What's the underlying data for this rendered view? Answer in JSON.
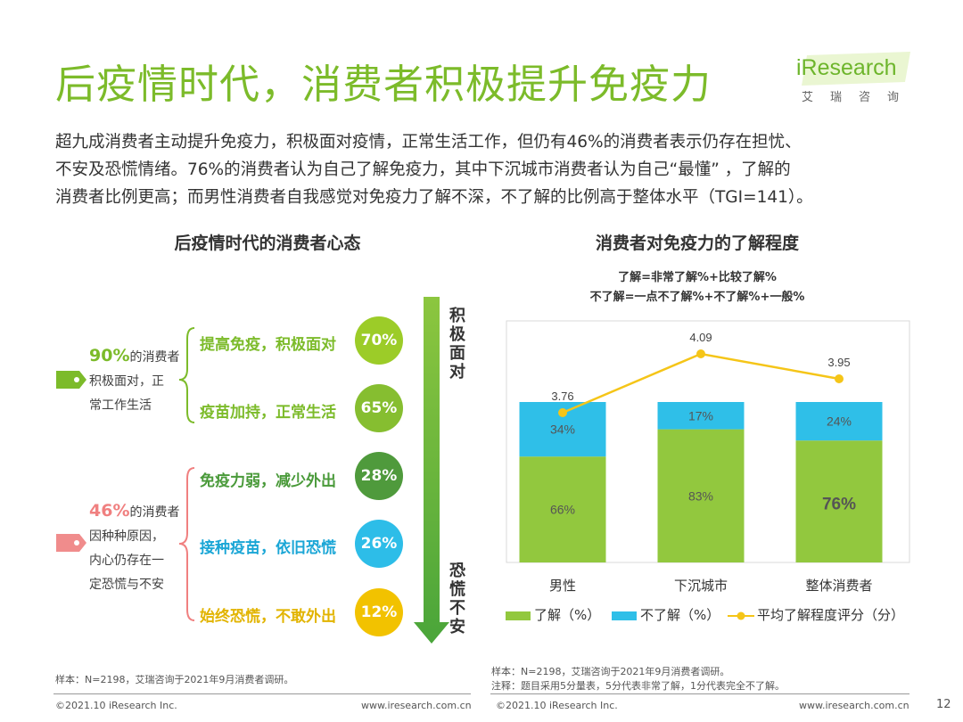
{
  "title": "后疫情时代，消费者积极提升免疫力",
  "logo": {
    "word": "iResearch",
    "sub": "艾瑞咨询"
  },
  "intro": [
    "超九成消费者主动提升免疫力，积极面对疫情，正常生活工作，但仍有46%的消费者表示仍存在担忧、",
    "不安及恐慌情绪。76%的消费者认为自己了解免疫力，其中下沉城市消费者认为自己“最懂” ，了解的",
    "消费者比例更高；而男性消费者自我感觉对免疫力了解不深，不了解的比例高于整体水平（TGI=141）。"
  ],
  "left": {
    "title": "后疫情时代的消费者心态",
    "groups": [
      {
        "pct": "90%",
        "suffix": "的消费者",
        "lines": [
          "积极面对，正",
          "常工作生活"
        ],
        "color": "#7cbb2a"
      },
      {
        "pct": "46%",
        "suffix": "的消费者",
        "lines": [
          "因种种原因，",
          "内心仍存在一",
          "定恐慌与不安"
        ],
        "color": "#f08080"
      }
    ],
    "items": [
      {
        "label": "提高免疫，积极面对",
        "pct": "70%",
        "text_color": "#7cbb2a",
        "circle_color": "#9ccc28"
      },
      {
        "label": "疫苗加持，正常生活",
        "pct": "65%",
        "text_color": "#7cbb2a",
        "circle_color": "#86be30"
      },
      {
        "label": "免疫力弱，减少外出",
        "pct": "28%",
        "text_color": "#4a9a3a",
        "circle_color": "#4f9a3c"
      },
      {
        "label": "接种疫苗，依旧恐慌",
        "pct": "26%",
        "text_color": "#1aa6d6",
        "circle_color": "#2dbde8"
      },
      {
        "label": "始终恐慌，不敢外出",
        "pct": "12%",
        "text_color": "#e2b400",
        "circle_color": "#f2c200"
      }
    ],
    "arrow_top_label": [
      "积",
      "极",
      "面",
      "对"
    ],
    "arrow_bottom_label": [
      "恐",
      "慌",
      "不",
      "安"
    ],
    "note": "样本：N=2198，艾瑞咨询于2021年9月消费者调研。"
  },
  "chart_data": {
    "type": "bar",
    "stacked": true,
    "title": "消费者对免疫力的了解程度",
    "definitions": [
      "了解=非常了解%+比较了解%",
      "不了解=一点不了解%+不了解%+一般%"
    ],
    "categories": [
      "男性",
      "下沉城市",
      "整体消费者"
    ],
    "series": [
      {
        "name": "了解（%）",
        "values": [
          66,
          83,
          76
        ],
        "labels": [
          "66%",
          "83%",
          "76%"
        ],
        "color": "#92c83e"
      },
      {
        "name": "不了解（%）",
        "values": [
          34,
          17,
          24
        ],
        "labels": [
          "34%",
          "17%",
          "24%"
        ],
        "color": "#2fbfe8"
      }
    ],
    "line_series": {
      "name": "平均了解程度评分（分）",
      "values": [
        3.76,
        4.09,
        3.95
      ],
      "labels": [
        "3.76",
        "4.09",
        "3.95"
      ],
      "color": "#f5c518"
    },
    "ylim": [
      0,
      100
    ]
  },
  "right": {
    "note1": "样本：N=2198，艾瑞咨询于2021年9月消费者调研。",
    "note2": "注释：题目采用5分量表，5分代表非常了解，1分代表完全不了解。"
  },
  "footer": {
    "copyright": "©2021.10 iResearch Inc.",
    "url": "www.iresearch.com.cn",
    "page": "12"
  }
}
